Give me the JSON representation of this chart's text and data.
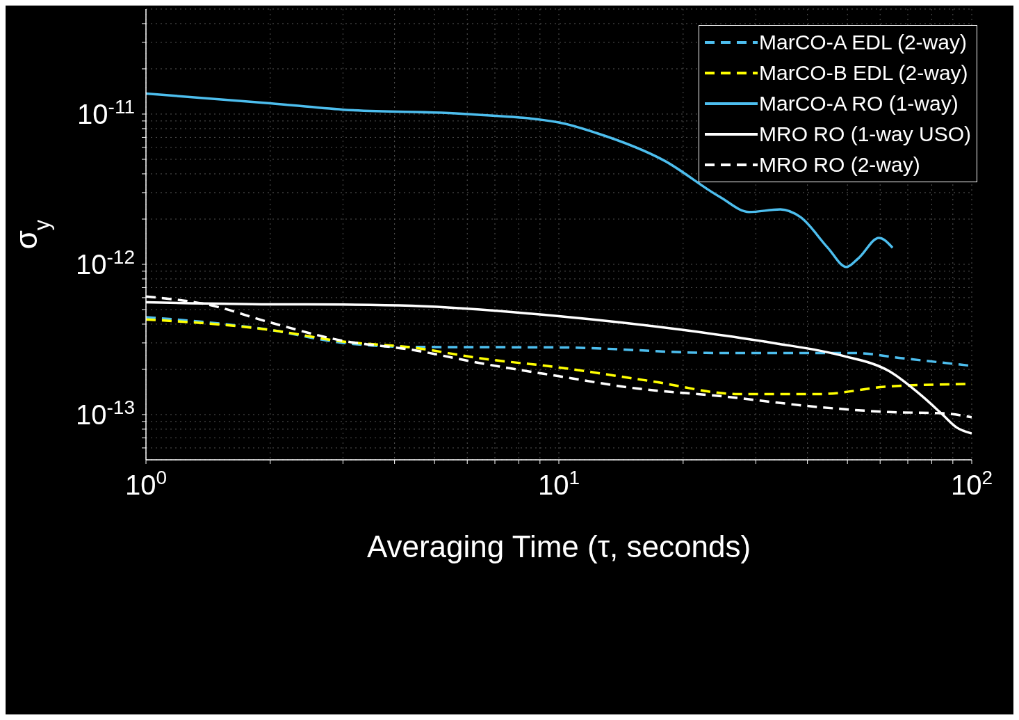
{
  "chart_data": {
    "type": "line",
    "xlabel": "Averaging Time (τ, seconds)",
    "ylabel": "σ$_{y}$",
    "log": "xy",
    "grid": true,
    "legend": "top right",
    "xlim": [
      1,
      100
    ],
    "ylim": [
      5e-14,
      5e-11
    ],
    "xticks": [
      {
        "value": 1,
        "label": "10$^{0}$"
      },
      {
        "value": 2,
        "label": null
      },
      {
        "value": 3,
        "label": null
      },
      {
        "value": 4,
        "label": null
      },
      {
        "value": 5,
        "label": null
      },
      {
        "value": 6,
        "label": null
      },
      {
        "value": 7,
        "label": null
      },
      {
        "value": 8,
        "label": null
      },
      {
        "value": 9,
        "label": null
      },
      {
        "value": 10,
        "label": "10$^{1}$"
      },
      {
        "value": 20,
        "label": null
      },
      {
        "value": 30,
        "label": null
      },
      {
        "value": 40,
        "label": null
      },
      {
        "value": 50,
        "label": null
      },
      {
        "value": 60,
        "label": null
      },
      {
        "value": 70,
        "label": null
      },
      {
        "value": 80,
        "label": null
      },
      {
        "value": 90,
        "label": null
      },
      {
        "value": 100,
        "label": "10$^{2}$"
      }
    ],
    "yticks": [
      {
        "value": 6e-14,
        "label": null
      },
      {
        "value": 7e-14,
        "label": null
      },
      {
        "value": 8e-14,
        "label": null
      },
      {
        "value": 9e-14,
        "label": null
      },
      {
        "value": 1e-13,
        "label": "10$^{-13}$"
      },
      {
        "value": 2e-13,
        "label": null
      },
      {
        "value": 3e-13,
        "label": null
      },
      {
        "value": 4e-13,
        "label": null
      },
      {
        "value": 5e-13,
        "label": null
      },
      {
        "value": 6e-13,
        "label": null
      },
      {
        "value": 7e-13,
        "label": null
      },
      {
        "value": 8e-13,
        "label": null
      },
      {
        "value": 9e-13,
        "label": null
      },
      {
        "value": 1e-12,
        "label": "10$^{-12}$"
      },
      {
        "value": 2e-12,
        "label": null
      },
      {
        "value": 3e-12,
        "label": null
      },
      {
        "value": 4e-12,
        "label": null
      },
      {
        "value": 5e-12,
        "label": null
      },
      {
        "value": 6e-12,
        "label": null
      },
      {
        "value": 7e-12,
        "label": null
      },
      {
        "value": 8e-12,
        "label": null
      },
      {
        "value": 9e-12,
        "label": null
      },
      {
        "value": 1e-11,
        "label": "10$^{-11}$"
      },
      {
        "value": 2e-11,
        "label": null
      },
      {
        "value": 3e-11,
        "label": null
      },
      {
        "value": 4e-11,
        "label": null
      }
    ],
    "series": [
      {
        "name": "MarCO-A EDL (2-way)",
        "color": "#4dbeee",
        "line_style": "dashed",
        "x": [
          1,
          2,
          3,
          4.4,
          10,
          24.5,
          52,
          68,
          100
        ],
        "values": [
          4.45e-13,
          3.66e-13,
          3e-13,
          2.82e-13,
          2.8e-13,
          2.57e-13,
          2.57e-13,
          2.37e-13,
          2.11e-13
        ]
      },
      {
        "name": "MarCO-B EDL (2-way)",
        "color": "#ffff00",
        "line_style": "dashed",
        "x": [
          1,
          2,
          3,
          4.4,
          6.45,
          10,
          16.7,
          27.3,
          43,
          63,
          100
        ],
        "values": [
          4.3e-13,
          3.66e-13,
          3.06e-13,
          2.8e-13,
          2.37e-13,
          2.06e-13,
          1.67e-13,
          1.37e-13,
          1.37e-13,
          1.54e-13,
          1.6e-13
        ]
      },
      {
        "name": "MarCO-A RO (1-way)",
        "color": "#4dbeee",
        "line_style": "solid",
        "x": [
          1,
          2,
          3,
          6,
          10,
          12.3,
          18,
          24.5,
          28.9,
          34.4,
          38.5,
          44.8,
          49.7,
          53.2,
          59.6,
          64.3
        ],
        "values": [
          1.37e-11,
          1.18e-11,
          1.07e-11,
          1e-11,
          8.8e-12,
          7.5e-12,
          4.9e-12,
          2.82e-12,
          2.23e-12,
          2.32e-12,
          2.06e-12,
          1.29e-12,
          9.6e-13,
          1.1e-12,
          1.5e-12,
          1.29e-12
        ]
      },
      {
        "name": "MRO RO (1-way USO)",
        "color": "#ffffff",
        "line_style": "solid",
        "x": [
          1,
          2,
          3,
          4.4,
          10,
          20,
          33,
          48.5,
          63,
          76,
          85,
          92,
          100
        ],
        "values": [
          5.59e-13,
          5.42e-13,
          5.4e-13,
          5.3e-13,
          4.52e-13,
          3.66e-13,
          3e-13,
          2.47e-13,
          1.95e-13,
          1.32e-13,
          1e-13,
          8.2e-14,
          7.5e-14
        ]
      },
      {
        "name": "MRO RO (2-way)",
        "color": "#ffffff",
        "line_style": "dashed",
        "x": [
          1,
          1.41,
          2,
          3,
          4.4,
          6.45,
          10,
          15.5,
          24.5,
          43,
          63,
          85,
          100
        ],
        "values": [
          6.1e-13,
          5.4e-13,
          4.1e-13,
          3.1e-13,
          2.7e-13,
          2.2e-13,
          1.8e-13,
          1.49e-13,
          1.33e-13,
          1.12e-13,
          1.04e-13,
          1.02e-13,
          9.6e-14
        ]
      }
    ]
  }
}
